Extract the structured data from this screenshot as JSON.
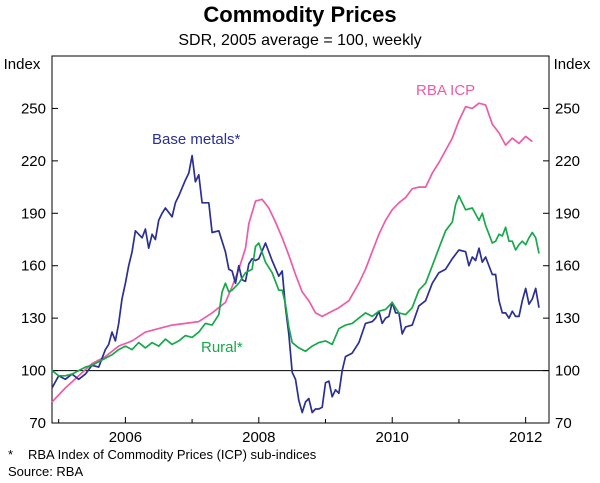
{
  "header": {
    "title": "Commodity Prices",
    "subtitle": "SDR, 2005 average = 100, weekly"
  },
  "footnotes": {
    "mark": "*",
    "note": "RBA Index of Commodity Prices (ICP) sub-indices",
    "source": "Source: RBA"
  },
  "colors": {
    "rba_icp": "#ec5ca8",
    "base_metals": "#2b2f92",
    "rural": "#17a84a",
    "axis": "#000000"
  },
  "chart_data": {
    "type": "line",
    "title": "Commodity Prices",
    "subtitle": "SDR, 2005 average = 100, weekly",
    "ylabel_left": "Index",
    "ylabel_right": "Index",
    "xlabel": "",
    "xlim": [
      2004.9,
      2012.35
    ],
    "ylim": [
      70,
      280
    ],
    "y_ticks": [
      70,
      100,
      130,
      160,
      190,
      220,
      250
    ],
    "y_tick_labels": [
      "70",
      "100",
      "130",
      "160",
      "190",
      "220",
      "250"
    ],
    "x_ticks": [
      2006,
      2008,
      2010,
      2012
    ],
    "x_tick_labels": [
      "2006",
      "2008",
      "2010",
      "2012"
    ],
    "reference_line": 100,
    "grid": false,
    "series": [
      {
        "name": "RBA ICP",
        "label": "RBA ICP",
        "color_key": "rba_icp",
        "points": [
          [
            2004.9,
            82
          ],
          [
            2005.1,
            90
          ],
          [
            2005.3,
            97
          ],
          [
            2005.5,
            104
          ],
          [
            2005.7,
            108
          ],
          [
            2005.9,
            114
          ],
          [
            2006.1,
            117
          ],
          [
            2006.3,
            122
          ],
          [
            2006.5,
            124
          ],
          [
            2006.7,
            126
          ],
          [
            2006.9,
            127
          ],
          [
            2007.1,
            128
          ],
          [
            2007.3,
            133
          ],
          [
            2007.5,
            139
          ],
          [
            2007.6,
            148
          ],
          [
            2007.7,
            158
          ],
          [
            2007.8,
            170
          ],
          [
            2007.85,
            184
          ],
          [
            2007.95,
            197
          ],
          [
            2008.05,
            198
          ],
          [
            2008.15,
            193
          ],
          [
            2008.25,
            185
          ],
          [
            2008.35,
            176
          ],
          [
            2008.45,
            166
          ],
          [
            2008.55,
            155
          ],
          [
            2008.65,
            145
          ],
          [
            2008.75,
            140
          ],
          [
            2008.85,
            133
          ],
          [
            2008.95,
            131
          ],
          [
            2009.05,
            133
          ],
          [
            2009.2,
            136
          ],
          [
            2009.35,
            140
          ],
          [
            2009.5,
            150
          ],
          [
            2009.6,
            158
          ],
          [
            2009.7,
            168
          ],
          [
            2009.8,
            178
          ],
          [
            2009.9,
            186
          ],
          [
            2010.0,
            192
          ],
          [
            2010.1,
            196
          ],
          [
            2010.2,
            199
          ],
          [
            2010.3,
            204
          ],
          [
            2010.4,
            205
          ],
          [
            2010.5,
            205
          ],
          [
            2010.6,
            213
          ],
          [
            2010.7,
            219
          ],
          [
            2010.8,
            226
          ],
          [
            2010.9,
            233
          ],
          [
            2011.0,
            243
          ],
          [
            2011.1,
            251
          ],
          [
            2011.2,
            250
          ],
          [
            2011.3,
            253
          ],
          [
            2011.4,
            252
          ],
          [
            2011.5,
            241
          ],
          [
            2011.6,
            236
          ],
          [
            2011.7,
            229
          ],
          [
            2011.8,
            233
          ],
          [
            2011.9,
            230
          ],
          [
            2012.0,
            234
          ],
          [
            2012.1,
            231
          ]
        ]
      },
      {
        "name": "Base metals*",
        "label": "Base metals*",
        "color_key": "base_metals",
        "points": [
          [
            2004.9,
            90
          ],
          [
            2005.0,
            97
          ],
          [
            2005.1,
            95
          ],
          [
            2005.2,
            98
          ],
          [
            2005.3,
            95
          ],
          [
            2005.4,
            98
          ],
          [
            2005.5,
            103
          ],
          [
            2005.6,
            102
          ],
          [
            2005.7,
            112
          ],
          [
            2005.75,
            115
          ],
          [
            2005.8,
            122
          ],
          [
            2005.85,
            117
          ],
          [
            2005.9,
            127
          ],
          [
            2005.95,
            141
          ],
          [
            2006.0,
            150
          ],
          [
            2006.05,
            160
          ],
          [
            2006.1,
            168
          ],
          [
            2006.15,
            180
          ],
          [
            2006.25,
            176
          ],
          [
            2006.3,
            181
          ],
          [
            2006.35,
            170
          ],
          [
            2006.4,
            178
          ],
          [
            2006.45,
            175
          ],
          [
            2006.5,
            186
          ],
          [
            2006.55,
            190
          ],
          [
            2006.6,
            193
          ],
          [
            2006.7,
            188
          ],
          [
            2006.75,
            196
          ],
          [
            2006.8,
            200
          ],
          [
            2006.9,
            209
          ],
          [
            2006.95,
            213
          ],
          [
            2007.0,
            223
          ],
          [
            2007.05,
            208
          ],
          [
            2007.1,
            212
          ],
          [
            2007.15,
            196
          ],
          [
            2007.2,
            196
          ],
          [
            2007.25,
            196
          ],
          [
            2007.3,
            179
          ],
          [
            2007.4,
            180
          ],
          [
            2007.5,
            168
          ],
          [
            2007.55,
            158
          ],
          [
            2007.6,
            157
          ],
          [
            2007.65,
            150
          ],
          [
            2007.7,
            160
          ],
          [
            2007.75,
            152
          ],
          [
            2007.8,
            151
          ],
          [
            2007.85,
            161
          ],
          [
            2007.9,
            164
          ],
          [
            2007.95,
            163
          ],
          [
            2008.0,
            164
          ],
          [
            2008.1,
            173
          ],
          [
            2008.2,
            163
          ],
          [
            2008.3,
            154
          ],
          [
            2008.35,
            157
          ],
          [
            2008.4,
            136
          ],
          [
            2008.45,
            121
          ],
          [
            2008.5,
            99
          ],
          [
            2008.55,
            95
          ],
          [
            2008.6,
            83
          ],
          [
            2008.65,
            76
          ],
          [
            2008.7,
            82
          ],
          [
            2008.75,
            84
          ],
          [
            2008.8,
            76
          ],
          [
            2008.85,
            78
          ],
          [
            2008.9,
            78
          ],
          [
            2008.95,
            79
          ],
          [
            2009.0,
            93
          ],
          [
            2009.05,
            94
          ],
          [
            2009.1,
            85
          ],
          [
            2009.15,
            89
          ],
          [
            2009.2,
            87
          ],
          [
            2009.25,
            100
          ],
          [
            2009.3,
            108
          ],
          [
            2009.4,
            110
          ],
          [
            2009.5,
            116
          ],
          [
            2009.6,
            127
          ],
          [
            2009.7,
            128
          ],
          [
            2009.75,
            130
          ],
          [
            2009.8,
            134
          ],
          [
            2009.85,
            127
          ],
          [
            2009.9,
            130
          ],
          [
            2009.95,
            131
          ],
          [
            2010.0,
            139
          ],
          [
            2010.05,
            133
          ],
          [
            2010.1,
            133
          ],
          [
            2010.15,
            121
          ],
          [
            2010.2,
            125
          ],
          [
            2010.3,
            126
          ],
          [
            2010.4,
            137
          ],
          [
            2010.5,
            140
          ],
          [
            2010.6,
            150
          ],
          [
            2010.7,
            156
          ],
          [
            2010.8,
            158
          ],
          [
            2010.9,
            164
          ],
          [
            2011.0,
            169
          ],
          [
            2011.1,
            168
          ],
          [
            2011.15,
            160
          ],
          [
            2011.2,
            165
          ],
          [
            2011.25,
            163
          ],
          [
            2011.3,
            170
          ],
          [
            2011.35,
            162
          ],
          [
            2011.4,
            165
          ],
          [
            2011.5,
            155
          ],
          [
            2011.55,
            155
          ],
          [
            2011.6,
            140
          ],
          [
            2011.65,
            133
          ],
          [
            2011.7,
            133
          ],
          [
            2011.75,
            130
          ],
          [
            2011.8,
            134
          ],
          [
            2011.85,
            131
          ],
          [
            2011.9,
            131
          ],
          [
            2011.95,
            140
          ],
          [
            2012.0,
            147
          ],
          [
            2012.05,
            138
          ],
          [
            2012.1,
            141
          ],
          [
            2012.15,
            147
          ],
          [
            2012.2,
            136
          ]
        ]
      },
      {
        "name": "Rural*",
        "label": "Rural*",
        "color_key": "rural",
        "points": [
          [
            2004.9,
            100
          ],
          [
            2005.0,
            97
          ],
          [
            2005.1,
            97
          ],
          [
            2005.2,
            98
          ],
          [
            2005.3,
            100
          ],
          [
            2005.4,
            102
          ],
          [
            2005.5,
            103
          ],
          [
            2005.6,
            105
          ],
          [
            2005.7,
            107
          ],
          [
            2005.8,
            109
          ],
          [
            2005.9,
            112
          ],
          [
            2006.0,
            114
          ],
          [
            2006.1,
            112
          ],
          [
            2006.2,
            116
          ],
          [
            2006.3,
            113
          ],
          [
            2006.4,
            116
          ],
          [
            2006.5,
            114
          ],
          [
            2006.6,
            118
          ],
          [
            2006.7,
            115
          ],
          [
            2006.8,
            117
          ],
          [
            2006.9,
            120
          ],
          [
            2007.0,
            119
          ],
          [
            2007.1,
            122
          ],
          [
            2007.2,
            127
          ],
          [
            2007.3,
            126
          ],
          [
            2007.4,
            132
          ],
          [
            2007.45,
            145
          ],
          [
            2007.5,
            150
          ],
          [
            2007.55,
            145
          ],
          [
            2007.6,
            146
          ],
          [
            2007.7,
            150
          ],
          [
            2007.8,
            156
          ],
          [
            2007.9,
            158
          ],
          [
            2007.95,
            171
          ],
          [
            2008.0,
            173
          ],
          [
            2008.1,
            162
          ],
          [
            2008.2,
            156
          ],
          [
            2008.3,
            146
          ],
          [
            2008.35,
            146
          ],
          [
            2008.4,
            138
          ],
          [
            2008.45,
            125
          ],
          [
            2008.5,
            116
          ],
          [
            2008.6,
            113
          ],
          [
            2008.7,
            111
          ],
          [
            2008.8,
            114
          ],
          [
            2008.9,
            116
          ],
          [
            2009.0,
            117
          ],
          [
            2009.1,
            115
          ],
          [
            2009.2,
            124
          ],
          [
            2009.3,
            126
          ],
          [
            2009.4,
            127
          ],
          [
            2009.5,
            130
          ],
          [
            2009.6,
            133
          ],
          [
            2009.7,
            131
          ],
          [
            2009.8,
            134
          ],
          [
            2009.9,
            135
          ],
          [
            2010.0,
            139
          ],
          [
            2010.1,
            133
          ],
          [
            2010.2,
            132
          ],
          [
            2010.3,
            136
          ],
          [
            2010.4,
            146
          ],
          [
            2010.5,
            150
          ],
          [
            2010.6,
            160
          ],
          [
            2010.7,
            170
          ],
          [
            2010.8,
            180
          ],
          [
            2010.9,
            185
          ],
          [
            2010.95,
            195
          ],
          [
            2011.0,
            200
          ],
          [
            2011.1,
            192
          ],
          [
            2011.2,
            193
          ],
          [
            2011.3,
            186
          ],
          [
            2011.35,
            190
          ],
          [
            2011.4,
            183
          ],
          [
            2011.45,
            178
          ],
          [
            2011.5,
            173
          ],
          [
            2011.55,
            174
          ],
          [
            2011.6,
            178
          ],
          [
            2011.65,
            177
          ],
          [
            2011.7,
            182
          ],
          [
            2011.75,
            174
          ],
          [
            2011.8,
            174
          ],
          [
            2011.85,
            169
          ],
          [
            2011.9,
            172
          ],
          [
            2011.95,
            174
          ],
          [
            2012.0,
            172
          ],
          [
            2012.05,
            176
          ],
          [
            2012.1,
            179
          ],
          [
            2012.15,
            176
          ],
          [
            2012.2,
            167
          ]
        ]
      }
    ]
  }
}
